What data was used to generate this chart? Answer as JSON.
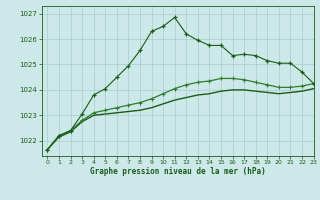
{
  "title": "Graphe pression niveau de la mer (hPa)",
  "xlim": [
    -0.5,
    23
  ],
  "ylim": [
    1021.4,
    1027.3
  ],
  "yticks": [
    1022,
    1023,
    1024,
    1025,
    1026,
    1027
  ],
  "xticks": [
    0,
    1,
    2,
    3,
    4,
    5,
    6,
    7,
    8,
    9,
    10,
    11,
    12,
    13,
    14,
    15,
    16,
    17,
    18,
    19,
    20,
    21,
    22,
    23
  ],
  "bg_color": "#cce8e8",
  "grid_color": "#aacccc",
  "dark_green": "#1a5c1a",
  "mid_green": "#2e7d2e",
  "line1_x": [
    0,
    1,
    2,
    3,
    4,
    5,
    6,
    7,
    8,
    9,
    10,
    11,
    12,
    13,
    14,
    15,
    16,
    17,
    18,
    19,
    20,
    21,
    22,
    23
  ],
  "line1_y": [
    1021.65,
    1022.2,
    1022.4,
    1023.05,
    1023.8,
    1024.05,
    1024.5,
    1024.95,
    1025.55,
    1026.3,
    1026.5,
    1026.85,
    1026.2,
    1025.95,
    1025.75,
    1025.75,
    1025.35,
    1025.4,
    1025.35,
    1025.15,
    1025.05,
    1025.05,
    1024.7,
    1024.25
  ],
  "line2_x": [
    0,
    1,
    2,
    3,
    4,
    5,
    6,
    7,
    8,
    9,
    10,
    11,
    12,
    13,
    14,
    15,
    16,
    17,
    18,
    19,
    20,
    21,
    22,
    23
  ],
  "line2_y": [
    1021.65,
    1022.2,
    1022.4,
    1022.8,
    1023.1,
    1023.2,
    1023.3,
    1023.4,
    1023.5,
    1023.65,
    1023.85,
    1024.05,
    1024.2,
    1024.3,
    1024.35,
    1024.45,
    1024.45,
    1024.4,
    1024.3,
    1024.2,
    1024.1,
    1024.1,
    1024.15,
    1024.25
  ],
  "line3_x": [
    0,
    1,
    2,
    3,
    4,
    5,
    6,
    7,
    8,
    9,
    10,
    11,
    12,
    13,
    14,
    15,
    16,
    17,
    18,
    19,
    20,
    21,
    22,
    23
  ],
  "line3_y": [
    1021.65,
    1022.15,
    1022.35,
    1022.75,
    1023.0,
    1023.05,
    1023.1,
    1023.15,
    1023.2,
    1023.3,
    1023.45,
    1023.6,
    1023.7,
    1023.8,
    1023.85,
    1023.95,
    1024.0,
    1024.0,
    1023.95,
    1023.9,
    1023.85,
    1023.9,
    1023.95,
    1024.05
  ]
}
